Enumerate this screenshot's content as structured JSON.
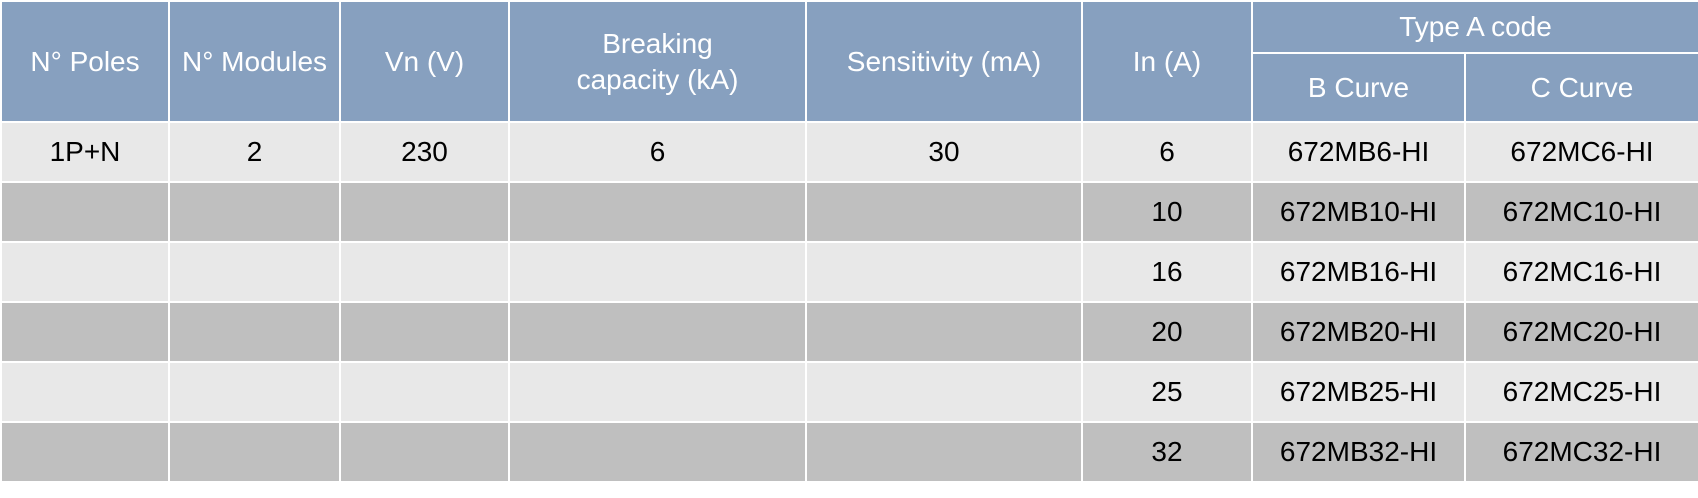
{
  "table": {
    "headers": [
      "N° Poles",
      "N° Modules",
      "Vn (V)",
      "Breaking capacity (kA)",
      "Sensitivity (mA)",
      "In (A)"
    ],
    "group_header": "Type A code",
    "sub_headers": [
      "B Curve",
      "C Curve"
    ],
    "first_row": [
      "1P+N",
      "2",
      "230",
      "6",
      "30",
      "6",
      "672MB6-HI",
      "672MC6-HI"
    ],
    "rows": [
      [
        "10",
        "672MB10-HI",
        "672MC10-HI"
      ],
      [
        "16",
        "672MB16-HI",
        "672MC16-HI"
      ],
      [
        "20",
        "672MB20-HI",
        "672MC20-HI"
      ],
      [
        "25",
        "672MB25-HI",
        "672MC25-HI"
      ],
      [
        "32",
        "672MB32-HI",
        "672MC32-HI"
      ]
    ]
  }
}
